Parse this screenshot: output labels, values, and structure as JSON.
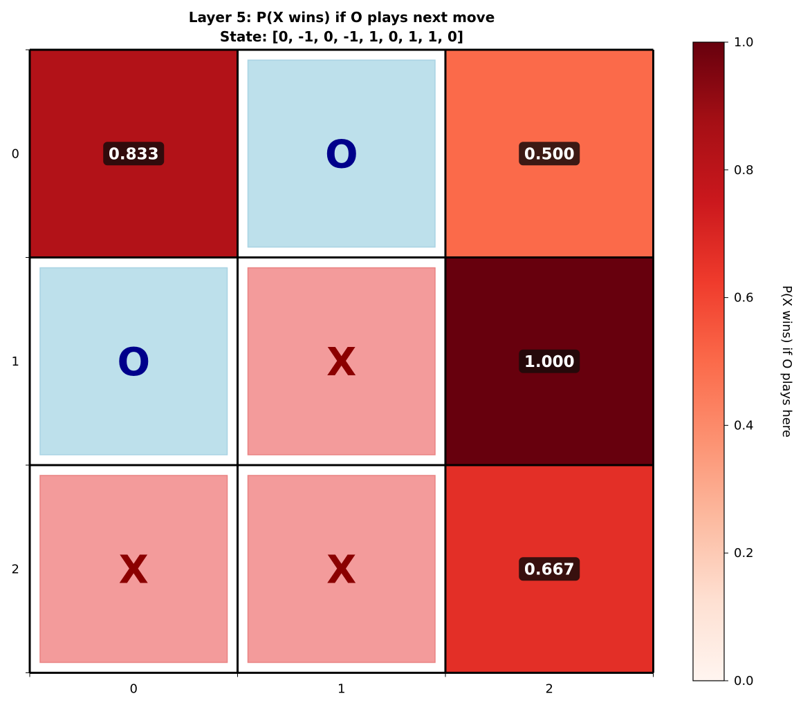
{
  "chart_data": {
    "type": "heatmap",
    "title": "Layer 5: P(X wins) if O plays next move",
    "subtitle": "State: [0, -1, 0, -1, 1, 0, 1, 1, 0]",
    "x_ticks": [
      "0",
      "1",
      "2"
    ],
    "y_ticks": [
      "0",
      "1",
      "2"
    ],
    "colorbar": {
      "label": "P(X wins) if O plays here",
      "range": [
        0,
        1
      ],
      "ticks": [
        "0.0",
        "0.2",
        "0.4",
        "0.6",
        "0.8",
        "1.0"
      ],
      "colormap": "Reds"
    },
    "cells": [
      {
        "row": 0,
        "col": 0,
        "kind": "value",
        "value": 0.833,
        "label": "0.833"
      },
      {
        "row": 0,
        "col": 1,
        "kind": "mark",
        "mark": "O"
      },
      {
        "row": 0,
        "col": 2,
        "kind": "value",
        "value": 0.5,
        "label": "0.500"
      },
      {
        "row": 1,
        "col": 0,
        "kind": "mark",
        "mark": "O"
      },
      {
        "row": 1,
        "col": 1,
        "kind": "mark",
        "mark": "X"
      },
      {
        "row": 1,
        "col": 2,
        "kind": "value",
        "value": 1.0,
        "label": "1.000"
      },
      {
        "row": 2,
        "col": 0,
        "kind": "mark",
        "mark": "X"
      },
      {
        "row": 2,
        "col": 1,
        "kind": "mark",
        "mark": "X"
      },
      {
        "row": 2,
        "col": 2,
        "kind": "value",
        "value": 0.667,
        "label": "0.667"
      }
    ],
    "colors": {
      "o_fill": "#bde0eb",
      "o_border": "#a8d3e3",
      "o_text": "#00008b",
      "x_fill": "#f39b9b",
      "x_border": "#e98282",
      "x_text": "#8b0000",
      "grid_line": "#000000",
      "badge_bg": "#1a0a0a"
    }
  }
}
